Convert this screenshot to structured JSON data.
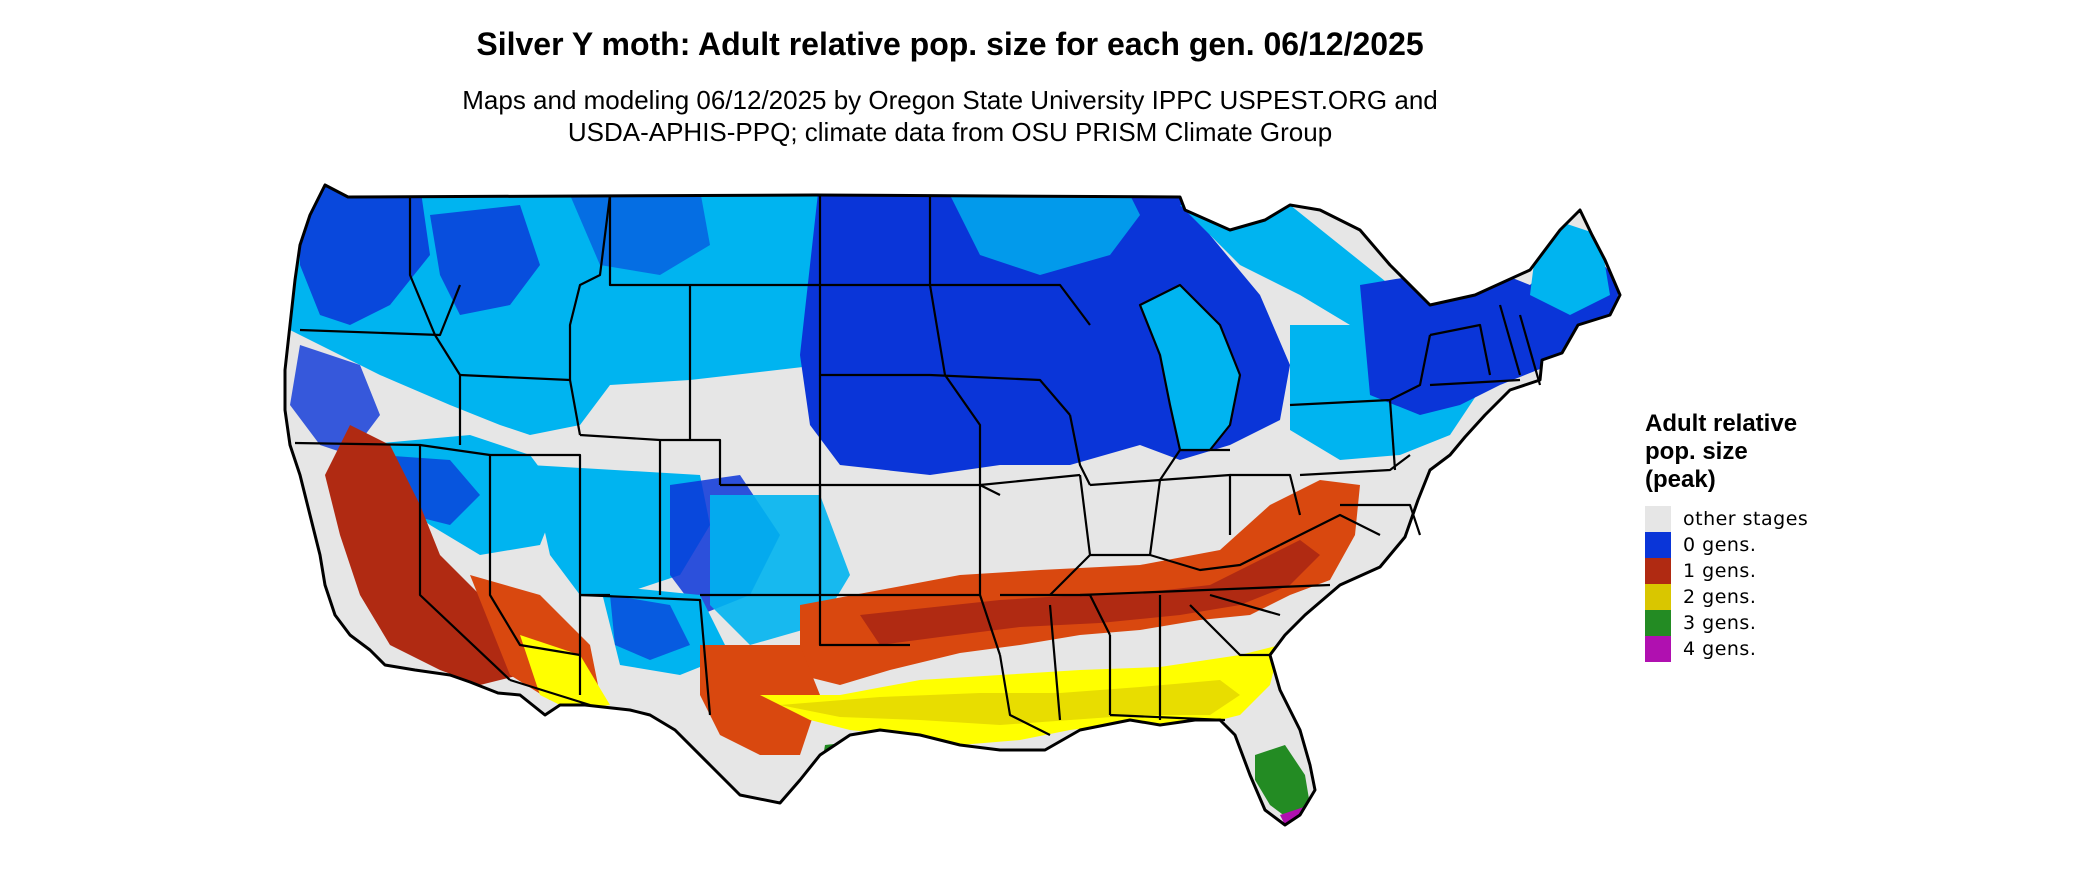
{
  "title": "Silver Y moth: Adult relative pop. size for each gen. 06/12/2025",
  "subtitle": {
    "line1": "Maps and modeling 06/12/2025 by Oregon State University IPPC USPEST.ORG and",
    "line2": "USDA-APHIS-PPQ; climate data from OSU PRISM Climate Group"
  },
  "legend": {
    "title_lines": [
      "Adult relative",
      "pop. size",
      "(peak)"
    ],
    "items": [
      {
        "label": "other stages",
        "color": "#e6e6e6"
      },
      {
        "label": "0 gens.",
        "color": "#0a35d8"
      },
      {
        "label": "1 gens.",
        "color": "#b02a12"
      },
      {
        "label": "2 gens.",
        "color": "#d9c600"
      },
      {
        "label": "3 gens.",
        "color": "#238b23"
      },
      {
        "label": "4 gens.",
        "color": "#b010b0"
      }
    ]
  },
  "map": {
    "region": "Continental United States",
    "colors": {
      "other": "#e6e6e6",
      "light_blue": "#00b4f0",
      "blue": "#0a35d8",
      "dark_red": "#b02a12",
      "orange_red": "#d9480f",
      "yellow": "#ffff00",
      "dark_yellow": "#d9c600",
      "green": "#238b23",
      "magenta": "#b010b0",
      "border": "#000000"
    }
  }
}
